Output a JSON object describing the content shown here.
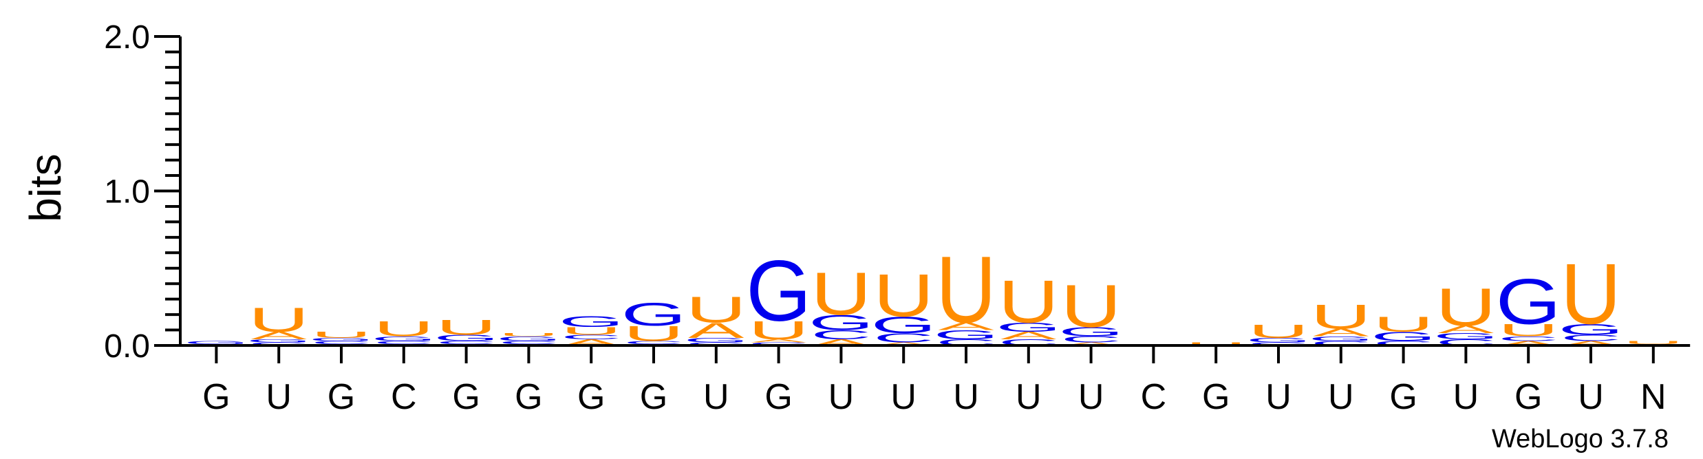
{
  "chart_data": {
    "type": "sequence-logo",
    "ylabel": "bits",
    "ylim": [
      0,
      2.0
    ],
    "yticks": [
      "0.0",
      "1.0",
      "2.0"
    ],
    "credit": "WebLogo 3.7.8",
    "colors": {
      "G": "#0000ee",
      "C": "#0000ee",
      "U": "#ff8c00",
      "A": "#ff8c00"
    },
    "positions": [
      {
        "label": "G",
        "stack": [
          {
            "l": "C",
            "h": 0.01
          },
          {
            "l": "G",
            "h": 0.02
          }
        ]
      },
      {
        "label": "U",
        "stack": [
          {
            "l": "C",
            "h": 0.02
          },
          {
            "l": "G",
            "h": 0.02
          },
          {
            "l": "A",
            "h": 0.05
          },
          {
            "l": "U",
            "h": 0.16
          }
        ]
      },
      {
        "label": "G",
        "stack": [
          {
            "l": "A",
            "h": 0.01
          },
          {
            "l": "C",
            "h": 0.02
          },
          {
            "l": "G",
            "h": 0.02
          },
          {
            "l": "U",
            "h": 0.04
          }
        ]
      },
      {
        "label": "C",
        "stack": [
          {
            "l": "A",
            "h": 0.01
          },
          {
            "l": "C",
            "h": 0.02
          },
          {
            "l": "G",
            "h": 0.03
          },
          {
            "l": "U",
            "h": 0.1
          }
        ]
      },
      {
        "label": "G",
        "stack": [
          {
            "l": "A",
            "h": 0.01
          },
          {
            "l": "C",
            "h": 0.02
          },
          {
            "l": "G",
            "h": 0.04
          },
          {
            "l": "U",
            "h": 0.1
          }
        ]
      },
      {
        "label": "G",
        "stack": [
          {
            "l": "A",
            "h": 0.01
          },
          {
            "l": "C",
            "h": 0.02
          },
          {
            "l": "G",
            "h": 0.03
          },
          {
            "l": "U",
            "h": 0.02
          }
        ]
      },
      {
        "label": "G",
        "stack": [
          {
            "l": "A",
            "h": 0.04
          },
          {
            "l": "C",
            "h": 0.03
          },
          {
            "l": "U",
            "h": 0.05
          },
          {
            "l": "G",
            "h": 0.07
          }
        ]
      },
      {
        "label": "G",
        "stack": [
          {
            "l": "A",
            "h": 0.01
          },
          {
            "l": "C",
            "h": 0.02
          },
          {
            "l": "U",
            "h": 0.1
          },
          {
            "l": "G",
            "h": 0.15
          }
        ]
      },
      {
        "label": "U",
        "stack": [
          {
            "l": "C",
            "h": 0.02
          },
          {
            "l": "G",
            "h": 0.03
          },
          {
            "l": "A",
            "h": 0.1
          },
          {
            "l": "U",
            "h": 0.17
          }
        ]
      },
      {
        "label": "G",
        "stack": [
          {
            "l": "C",
            "h": 0.02
          },
          {
            "l": "A",
            "h": 0.02
          },
          {
            "l": "U",
            "h": 0.12
          },
          {
            "l": "G",
            "h": 0.4
          }
        ]
      },
      {
        "label": "U",
        "stack": [
          {
            "l": "A",
            "h": 0.04
          },
          {
            "l": "C",
            "h": 0.06
          },
          {
            "l": "G",
            "h": 0.1
          },
          {
            "l": "U",
            "h": 0.28
          }
        ]
      },
      {
        "label": "U",
        "stack": [
          {
            "l": "A",
            "h": 0.02
          },
          {
            "l": "C",
            "h": 0.06
          },
          {
            "l": "G",
            "h": 0.11
          },
          {
            "l": "U",
            "h": 0.28
          }
        ]
      },
      {
        "label": "U",
        "stack": [
          {
            "l": "C",
            "h": 0.04
          },
          {
            "l": "G",
            "h": 0.06
          },
          {
            "l": "A",
            "h": 0.05
          },
          {
            "l": "U",
            "h": 0.44
          }
        ]
      },
      {
        "label": "U",
        "stack": [
          {
            "l": "C",
            "h": 0.04
          },
          {
            "l": "A",
            "h": 0.05
          },
          {
            "l": "G",
            "h": 0.06
          },
          {
            "l": "U",
            "h": 0.28
          }
        ]
      },
      {
        "label": "U",
        "stack": [
          {
            "l": "A",
            "h": 0.02
          },
          {
            "l": "C",
            "h": 0.04
          },
          {
            "l": "G",
            "h": 0.06
          },
          {
            "l": "U",
            "h": 0.28
          }
        ]
      },
      {
        "label": "C",
        "stack": []
      },
      {
        "label": "G",
        "stack": [
          {
            "l": "U",
            "h": 0.02
          }
        ]
      },
      {
        "label": "U",
        "stack": [
          {
            "l": "C",
            "h": 0.02
          },
          {
            "l": "G",
            "h": 0.03
          },
          {
            "l": "U",
            "h": 0.09
          }
        ]
      },
      {
        "label": "U",
        "stack": [
          {
            "l": "C",
            "h": 0.03
          },
          {
            "l": "G",
            "h": 0.03
          },
          {
            "l": "A",
            "h": 0.05
          },
          {
            "l": "U",
            "h": 0.16
          }
        ]
      },
      {
        "label": "G",
        "stack": [
          {
            "l": "C",
            "h": 0.03
          },
          {
            "l": "G",
            "h": 0.06
          },
          {
            "l": "U",
            "h": 0.1
          }
        ]
      },
      {
        "label": "U",
        "stack": [
          {
            "l": "C",
            "h": 0.04
          },
          {
            "l": "G",
            "h": 0.04
          },
          {
            "l": "A",
            "h": 0.05
          },
          {
            "l": "U",
            "h": 0.25
          }
        ]
      },
      {
        "label": "G",
        "stack": [
          {
            "l": "A",
            "h": 0.03
          },
          {
            "l": "C",
            "h": 0.03
          },
          {
            "l": "U",
            "h": 0.08
          },
          {
            "l": "G",
            "h": 0.3
          }
        ]
      },
      {
        "label": "U",
        "stack": [
          {
            "l": "A",
            "h": 0.03
          },
          {
            "l": "C",
            "h": 0.04
          },
          {
            "l": "G",
            "h": 0.07
          },
          {
            "l": "U",
            "h": 0.4
          }
        ]
      },
      {
        "label": "N",
        "stack": [
          {
            "l": "G",
            "h": 0.01
          },
          {
            "l": "U",
            "h": 0.02
          }
        ]
      }
    ]
  }
}
